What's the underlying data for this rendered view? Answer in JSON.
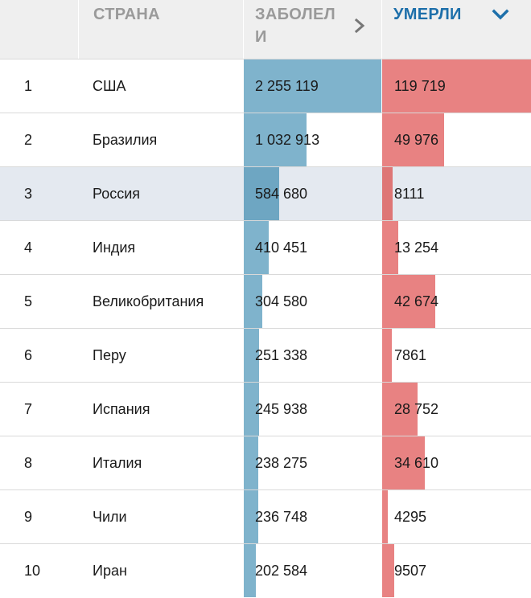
{
  "header": {
    "country": "СТРАНА",
    "cases": "ЗАБОЛЕЛИ",
    "deaths": "УМЕРЛИ"
  },
  "colors": {
    "cases_bar": "#7fb3cc",
    "deaths_bar": "#e88282",
    "active_header": "#1d6faa",
    "highlight_row": "#e4e9f0"
  },
  "max": {
    "cases": 2255119,
    "deaths": 119719
  },
  "rows": [
    {
      "rank": "1",
      "country": "США",
      "cases": "2 255 119",
      "deaths": "119 719",
      "cases_n": 2255119,
      "deaths_n": 119719
    },
    {
      "rank": "2",
      "country": "Бразилия",
      "cases": "1 032 913",
      "deaths": "49 976",
      "cases_n": 1032913,
      "deaths_n": 49976
    },
    {
      "rank": "3",
      "country": "Россия",
      "cases": "584 680",
      "deaths": "8111",
      "cases_n": 584680,
      "deaths_n": 8111,
      "highlight": true
    },
    {
      "rank": "4",
      "country": "Индия",
      "cases": "410 451",
      "deaths": "13 254",
      "cases_n": 410451,
      "deaths_n": 13254
    },
    {
      "rank": "5",
      "country": "Великобритания",
      "cases": "304 580",
      "deaths": "42 674",
      "cases_n": 304580,
      "deaths_n": 42674
    },
    {
      "rank": "6",
      "country": "Перу",
      "cases": "251 338",
      "deaths": "7861",
      "cases_n": 251338,
      "deaths_n": 7861
    },
    {
      "rank": "7",
      "country": "Испания",
      "cases": "245 938",
      "deaths": "28 752",
      "cases_n": 245938,
      "deaths_n": 28752
    },
    {
      "rank": "8",
      "country": "Италия",
      "cases": "238 275",
      "deaths": "34 610",
      "cases_n": 238275,
      "deaths_n": 34610
    },
    {
      "rank": "9",
      "country": "Чили",
      "cases": "236 748",
      "deaths": "4295",
      "cases_n": 236748,
      "deaths_n": 4295
    },
    {
      "rank": "10",
      "country": "Иран",
      "cases": "202 584",
      "deaths": "9507",
      "cases_n": 202584,
      "deaths_n": 9507
    }
  ]
}
